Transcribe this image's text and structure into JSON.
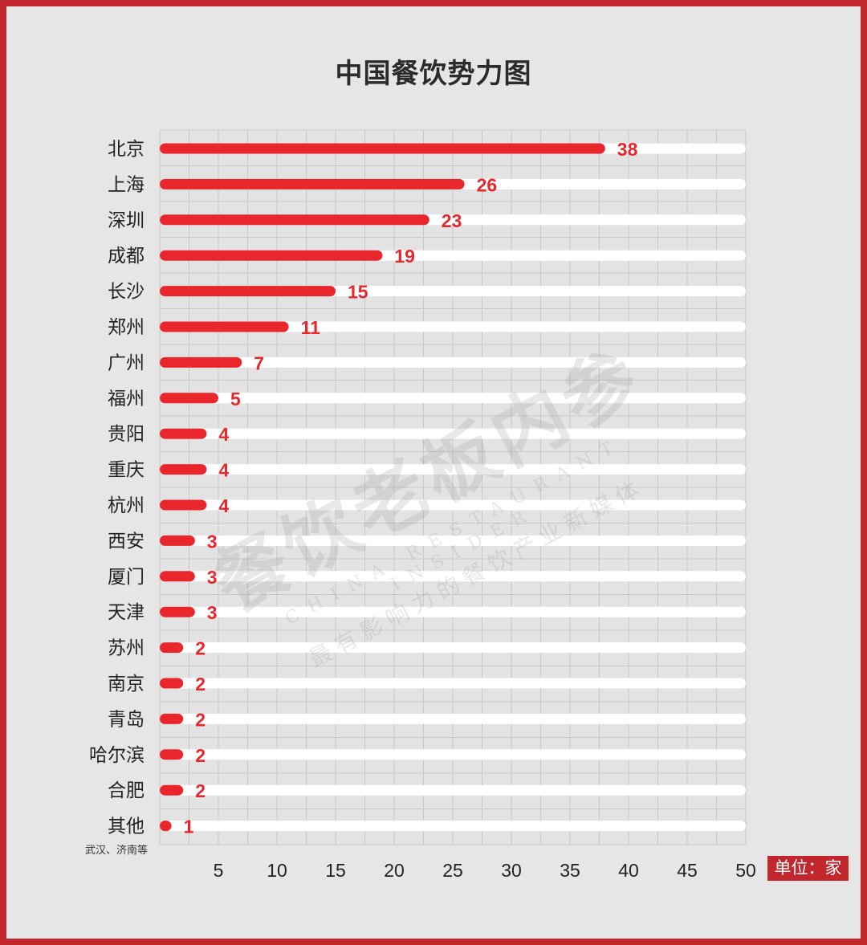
{
  "colors": {
    "frame": "#c1272d",
    "bar": "#e8262c",
    "track": "#ffffff",
    "label": "#e8262c",
    "grid": "#c8c8c8"
  },
  "unit_label": "单位：家",
  "other_note": "武汉、济南等",
  "watermark": {
    "main": "餐饮老板内参",
    "english": "CHINA RESTAURANT INSIDER",
    "sub": "最有影响力的餐饮产业新媒体"
  },
  "chart_data": {
    "type": "bar",
    "orientation": "horizontal",
    "title": "中国餐饮势力图",
    "categories": [
      "北京",
      "上海",
      "深圳",
      "成都",
      "长沙",
      "郑州",
      "广州",
      "福州",
      "贵阳",
      "重庆",
      "杭州",
      "西安",
      "厦门",
      "天津",
      "苏州",
      "南京",
      "青岛",
      "哈尔滨",
      "合肥",
      "其他"
    ],
    "values": [
      38,
      26,
      23,
      19,
      15,
      11,
      7,
      5,
      4,
      4,
      4,
      3,
      3,
      3,
      2,
      2,
      2,
      2,
      2,
      1
    ],
    "xlim": [
      0,
      50
    ],
    "xticks": [
      5,
      10,
      15,
      20,
      25,
      30,
      35,
      40,
      45,
      50
    ],
    "grid": true,
    "data_labels": true
  }
}
